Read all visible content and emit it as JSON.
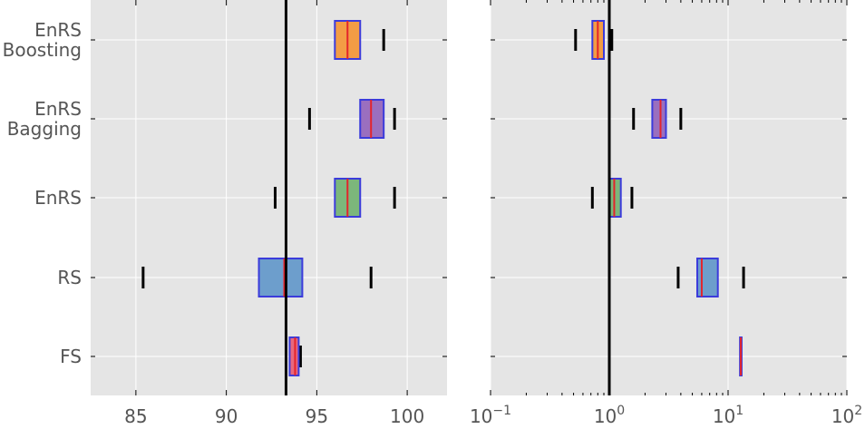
{
  "chart_data": [
    {
      "type": "boxplot",
      "orientation": "horizontal",
      "categories": [
        "EnRS\nBoosting",
        "EnRS\nBagging",
        "EnRS",
        "RS",
        "FS"
      ],
      "x_scale": "linear",
      "xlim": [
        82.5,
        102.2
      ],
      "x_ticks": [
        85,
        90,
        95,
        100
      ],
      "x_tick_labels": [
        "85",
        "90",
        "95",
        "100"
      ],
      "reference_line": 93.3,
      "grid": true,
      "boxes": [
        {
          "category": "EnRS\nBoosting",
          "whisker_low": null,
          "q1": 96.0,
          "median": 96.7,
          "q3": 97.4,
          "whisker_high": 98.7,
          "color": "#f39c45"
        },
        {
          "category": "EnRS\nBagging",
          "whisker_low": 94.6,
          "q1": 97.4,
          "median": 98.0,
          "q3": 98.7,
          "whisker_high": 99.3,
          "color": "#9a6fbf"
        },
        {
          "category": "EnRS",
          "whisker_low": 92.7,
          "q1": 96.0,
          "median": 96.7,
          "q3": 97.4,
          "whisker_high": 99.3,
          "color": "#7cb77b"
        },
        {
          "category": "RS",
          "whisker_low": 85.4,
          "q1": 91.8,
          "median": 93.2,
          "q3": 94.2,
          "whisker_high": 98.0,
          "color": "#6d9ecc"
        },
        {
          "category": "FS",
          "whisker_low": null,
          "q1": 93.5,
          "median": 93.8,
          "q3": 94.0,
          "whisker_high": 94.1,
          "color": "#e8687d"
        }
      ]
    },
    {
      "type": "boxplot",
      "orientation": "horizontal",
      "categories": [
        "EnRS\nBoosting",
        "EnRS\nBagging",
        "EnRS",
        "RS",
        "FS"
      ],
      "x_scale": "log",
      "xlim": [
        0.1,
        100
      ],
      "x_ticks": [
        0.1,
        1,
        10,
        100
      ],
      "x_tick_labels": [
        {
          "base": "10",
          "exp": "−1"
        },
        {
          "base": "10",
          "exp": "0"
        },
        {
          "base": "10",
          "exp": "1"
        },
        {
          "base": "10",
          "exp": "2"
        }
      ],
      "reference_line": 1,
      "grid": true,
      "boxes": [
        {
          "category": "EnRS\nBoosting",
          "whisker_low": 0.52,
          "q1": 0.72,
          "median": 0.8,
          "q3": 0.9,
          "whisker_high": 1.05,
          "color": "#f39c45"
        },
        {
          "category": "EnRS\nBagging",
          "whisker_low": 1.6,
          "q1": 2.3,
          "median": 2.7,
          "q3": 3.0,
          "whisker_high": 4.0,
          "color": "#9a6fbf"
        },
        {
          "category": "EnRS",
          "whisker_low": 0.72,
          "q1": 1.0,
          "median": 1.1,
          "q3": 1.25,
          "whisker_high": 1.55,
          "color": "#7cb77b"
        },
        {
          "category": "RS",
          "whisker_low": 3.8,
          "q1": 5.5,
          "median": 6.0,
          "q3": 8.2,
          "whisker_high": 13.5,
          "color": "#6d9ecc"
        },
        {
          "category": "FS",
          "whisker_low": null,
          "q1": 12.6,
          "median": 12.8,
          "q3": 13.0,
          "whisker_high": null,
          "color": "#e8687d"
        }
      ]
    }
  ],
  "colors": {
    "panel_background": "#e5e5e5",
    "grid": "#ffffff",
    "box_edge": "#3b3bdb",
    "median": "#e3242b",
    "whisker": "#000000",
    "reference_line": "#000000",
    "tick_label": "#555555"
  }
}
